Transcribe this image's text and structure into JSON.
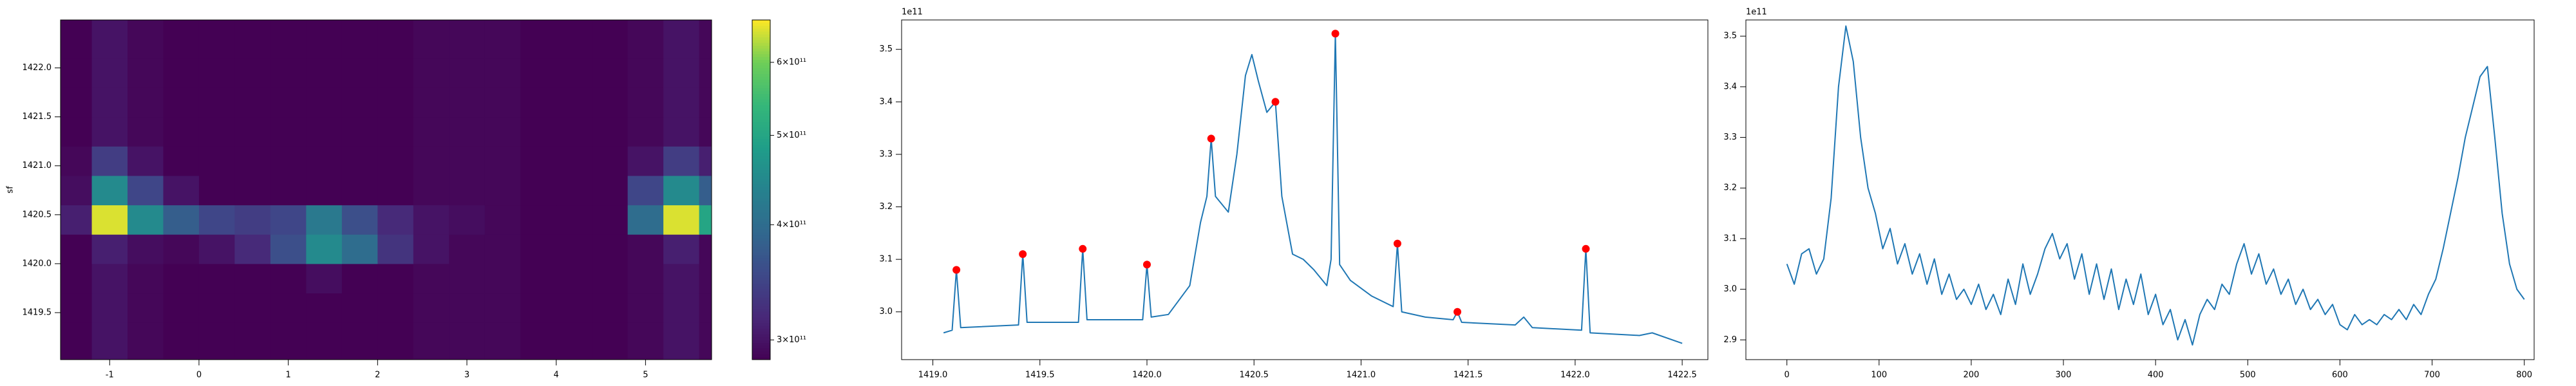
{
  "chart_data": [
    {
      "type": "heatmap",
      "colormap": "viridis",
      "color_scale": "log",
      "ylabel": "sf",
      "x_edges": [
        -1.55,
        -1.2,
        -0.8,
        -0.4,
        0,
        0.4,
        0.8,
        1.2,
        1.6,
        2.0,
        2.4,
        2.8,
        3.2,
        3.6,
        4.0,
        4.4,
        4.8,
        5.2,
        5.6,
        5.74
      ],
      "y_edges": [
        1419.02,
        1419.4,
        1419.7,
        1420.0,
        1420.3,
        1420.6,
        1420.9,
        1421.2,
        1421.5,
        1421.8,
        1422.1,
        1422.49
      ],
      "z": [
        [
          285000000000.0,
          300000000000.0,
          290000000000.0,
          280000000000.0,
          280000000000.0,
          280000000000.0,
          280000000000.0,
          280000000000.0,
          280000000000.0,
          280000000000.0,
          290000000000.0,
          290000000000.0,
          290000000000.0,
          285000000000.0,
          280000000000.0,
          280000000000.0,
          290000000000.0,
          300000000000.0,
          290000000000.0
        ],
        [
          285000000000.0,
          300000000000.0,
          290000000000.0,
          280000000000.0,
          280000000000.0,
          280000000000.0,
          280000000000.0,
          280000000000.0,
          280000000000.0,
          280000000000.0,
          290000000000.0,
          290000000000.0,
          290000000000.0,
          285000000000.0,
          280000000000.0,
          280000000000.0,
          290000000000.0,
          300000000000.0,
          290000000000.0
        ],
        [
          285000000000.0,
          300000000000.0,
          290000000000.0,
          280000000000.0,
          280000000000.0,
          280000000000.0,
          285000000000.0,
          295000000000.0,
          285000000000.0,
          280000000000.0,
          290000000000.0,
          290000000000.0,
          290000000000.0,
          285000000000.0,
          280000000000.0,
          280000000000.0,
          290000000000.0,
          300000000000.0,
          290000000000.0
        ],
        [
          285000000000.0,
          310000000000.0,
          295000000000.0,
          290000000000.0,
          300000000000.0,
          320000000000.0,
          360000000000.0,
          450000000000.0,
          400000000000.0,
          330000000000.0,
          300000000000.0,
          290000000000.0,
          290000000000.0,
          285000000000.0,
          280000000000.0,
          280000000000.0,
          290000000000.0,
          310000000000.0,
          290000000000.0
        ],
        [
          310000000000.0,
          650000000000.0,
          450000000000.0,
          380000000000.0,
          350000000000.0,
          340000000000.0,
          350000000000.0,
          420000000000.0,
          360000000000.0,
          320000000000.0,
          300000000000.0,
          295000000000.0,
          290000000000.0,
          285000000000.0,
          280000000000.0,
          285000000000.0,
          400000000000.0,
          650000000000.0,
          500000000000.0
        ],
        [
          295000000000.0,
          450000000000.0,
          350000000000.0,
          300000000000.0,
          285000000000.0,
          280000000000.0,
          280000000000.0,
          280000000000.0,
          280000000000.0,
          280000000000.0,
          290000000000.0,
          290000000000.0,
          290000000000.0,
          285000000000.0,
          280000000000.0,
          280000000000.0,
          350000000000.0,
          450000000000.0,
          380000000000.0
        ],
        [
          290000000000.0,
          340000000000.0,
          300000000000.0,
          280000000000.0,
          280000000000.0,
          280000000000.0,
          280000000000.0,
          280000000000.0,
          280000000000.0,
          280000000000.0,
          290000000000.0,
          290000000000.0,
          290000000000.0,
          285000000000.0,
          280000000000.0,
          280000000000.0,
          300000000000.0,
          340000000000.0,
          310000000000.0
        ],
        [
          285000000000.0,
          300000000000.0,
          290000000000.0,
          280000000000.0,
          280000000000.0,
          280000000000.0,
          280000000000.0,
          280000000000.0,
          280000000000.0,
          280000000000.0,
          290000000000.0,
          290000000000.0,
          290000000000.0,
          285000000000.0,
          280000000000.0,
          280000000000.0,
          290000000000.0,
          300000000000.0,
          290000000000.0
        ],
        [
          285000000000.0,
          300000000000.0,
          290000000000.0,
          280000000000.0,
          280000000000.0,
          280000000000.0,
          280000000000.0,
          280000000000.0,
          280000000000.0,
          280000000000.0,
          290000000000.0,
          290000000000.0,
          290000000000.0,
          285000000000.0,
          280000000000.0,
          280000000000.0,
          290000000000.0,
          300000000000.0,
          290000000000.0
        ],
        [
          285000000000.0,
          300000000000.0,
          290000000000.0,
          280000000000.0,
          280000000000.0,
          280000000000.0,
          280000000000.0,
          280000000000.0,
          280000000000.0,
          280000000000.0,
          290000000000.0,
          290000000000.0,
          290000000000.0,
          285000000000.0,
          280000000000.0,
          280000000000.0,
          290000000000.0,
          300000000000.0,
          290000000000.0
        ],
        [
          285000000000.0,
          300000000000.0,
          290000000000.0,
          280000000000.0,
          280000000000.0,
          280000000000.0,
          280000000000.0,
          280000000000.0,
          280000000000.0,
          280000000000.0,
          290000000000.0,
          290000000000.0,
          290000000000.0,
          285000000000.0,
          280000000000.0,
          280000000000.0,
          290000000000.0,
          300000000000.0,
          290000000000.0
        ]
      ],
      "xlim": [
        -1.55,
        5.74
      ],
      "ylim": [
        1419.02,
        1422.49
      ],
      "xticks": [
        -1,
        0,
        1,
        2,
        3,
        4,
        5
      ],
      "yticks": [
        1419.5,
        {
          "value": 1420.0,
          "label": "1420.0"
        },
        1420.5,
        {
          "value": 1421.0,
          "label": "1421.0"
        },
        1421.5,
        {
          "value": 1422.0,
          "label": "1422.0"
        }
      ],
      "clim": [
        285600000000.0,
        667000000000.0
      ],
      "cbar_ticks": [
        {
          "value": 300000000000.0,
          "label": "3×10¹¹"
        },
        {
          "value": 400000000000.0,
          "label": "4×10¹¹"
        },
        {
          "value": 500000000000.0,
          "label": "5×10¹¹"
        },
        {
          "value": 600000000000.0,
          "label": "6×10¹¹"
        }
      ]
    },
    {
      "type": "line",
      "y_offset_label": "1e11",
      "x": [
        1419.05,
        1419.09,
        1419.11,
        1419.13,
        1419.4,
        1419.42,
        1419.44,
        1419.68,
        1419.7,
        1419.72,
        1419.98,
        1420.0,
        1420.02,
        1420.1,
        1420.2,
        1420.25,
        1420.28,
        1420.3,
        1420.32,
        1420.38,
        1420.42,
        1420.46,
        1420.49,
        1420.52,
        1420.56,
        1420.6,
        1420.63,
        1420.68,
        1420.73,
        1420.78,
        1420.84,
        1420.86,
        1420.88,
        1420.9,
        1420.95,
        1421.05,
        1421.15,
        1421.17,
        1421.19,
        1421.3,
        1421.43,
        1421.45,
        1421.47,
        1421.72,
        1421.76,
        1421.8,
        1422.03,
        1422.05,
        1422.07,
        1422.3,
        1422.36,
        1422.5
      ],
      "series": [
        {
          "color": "#1f77b4",
          "values": [
            2.96,
            2.965,
            3.08,
            2.97,
            2.975,
            3.11,
            2.98,
            2.98,
            3.12,
            2.985,
            2.985,
            3.09,
            2.99,
            2.995,
            3.05,
            3.17,
            3.22,
            3.33,
            3.22,
            3.19,
            3.3,
            3.45,
            3.49,
            3.44,
            3.38,
            3.4,
            3.22,
            3.11,
            3.1,
            3.08,
            3.05,
            3.1,
            3.53,
            3.09,
            3.06,
            3.03,
            3.01,
            3.13,
            3.0,
            2.99,
            2.985,
            3.0,
            2.98,
            2.975,
            2.99,
            2.97,
            2.965,
            3.12,
            2.96,
            2.955,
            2.96,
            2.94
          ]
        }
      ],
      "markers": {
        "color": "red",
        "x": [
          1419.11,
          1419.42,
          1419.7,
          1420.0,
          1420.3,
          1420.6,
          1420.88,
          1421.17,
          1421.45,
          1422.05
        ],
        "values": [
          3.08,
          3.11,
          3.12,
          3.09,
          3.33,
          3.4,
          3.53,
          3.13,
          3.0,
          3.12
        ]
      },
      "xlim": [
        1418.854,
        1422.62
      ],
      "ylim": [
        2.909,
        3.556
      ],
      "xticks": [
        {
          "value": 1419.0,
          "label": "1419.0"
        },
        1419.5,
        {
          "value": 1420.0,
          "label": "1420.0"
        },
        1420.5,
        {
          "value": 1421.0,
          "label": "1421.0"
        },
        1421.5,
        {
          "value": 1422.0,
          "label": "1422.0"
        },
        1422.5
      ],
      "yticks": [
        {
          "value": 3.0,
          "label": "3.0"
        },
        3.1,
        3.2,
        3.3,
        3.4,
        3.5
      ]
    },
    {
      "type": "line",
      "y_offset_label": "1e11",
      "x": [
        0,
        8,
        16,
        24,
        32,
        40,
        48,
        56,
        64,
        72,
        80,
        88,
        96,
        104,
        112,
        120,
        128,
        136,
        144,
        152,
        160,
        168,
        176,
        184,
        192,
        200,
        208,
        216,
        224,
        232,
        240,
        248,
        256,
        264,
        272,
        280,
        288,
        296,
        304,
        312,
        320,
        328,
        336,
        344,
        352,
        360,
        368,
        376,
        384,
        392,
        400,
        408,
        416,
        424,
        432,
        440,
        448,
        456,
        464,
        472,
        480,
        488,
        496,
        504,
        512,
        520,
        528,
        536,
        544,
        552,
        560,
        568,
        576,
        584,
        592,
        600,
        608,
        616,
        624,
        632,
        640,
        648,
        656,
        664,
        672,
        680,
        688,
        696,
        704,
        712,
        720,
        728,
        736,
        744,
        752,
        760,
        768,
        776,
        784,
        792,
        800
      ],
      "series": [
        {
          "color": "#1f77b4",
          "values": [
            3.05,
            3.01,
            3.07,
            3.08,
            3.03,
            3.06,
            3.18,
            3.4,
            3.52,
            3.45,
            3.3,
            3.2,
            3.15,
            3.08,
            3.12,
            3.05,
            3.09,
            3.03,
            3.07,
            3.01,
            3.06,
            2.99,
            3.03,
            2.98,
            3.0,
            2.97,
            3.01,
            2.96,
            2.99,
            2.95,
            3.02,
            2.97,
            3.05,
            2.99,
            3.03,
            3.08,
            3.11,
            3.06,
            3.09,
            3.02,
            3.07,
            2.99,
            3.05,
            2.98,
            3.04,
            2.96,
            3.02,
            2.97,
            3.03,
            2.95,
            2.99,
            2.93,
            2.96,
            2.9,
            2.94,
            2.89,
            2.95,
            2.98,
            2.96,
            3.01,
            2.99,
            3.05,
            3.09,
            3.03,
            3.07,
            3.01,
            3.04,
            2.99,
            3.02,
            2.97,
            3.0,
            2.96,
            2.98,
            2.95,
            2.97,
            2.93,
            2.92,
            2.95,
            2.93,
            2.94,
            2.93,
            2.95,
            2.94,
            2.96,
            2.94,
            2.97,
            2.95,
            2.99,
            3.02,
            3.08,
            3.15,
            3.22,
            3.3,
            3.36,
            3.42,
            3.44,
            3.3,
            3.15,
            3.05,
            3.0,
            2.98
          ]
        }
      ],
      "xlim": [
        -44.5,
        810.7
      ],
      "ylim": [
        2.861,
        3.532
      ],
      "xticks": [
        0,
        100,
        200,
        300,
        400,
        500,
        600,
        700,
        800
      ],
      "yticks": [
        2.9,
        {
          "value": 3.0,
          "label": "3.0"
        },
        3.1,
        3.2,
        3.3,
        3.4,
        3.5
      ]
    }
  ]
}
